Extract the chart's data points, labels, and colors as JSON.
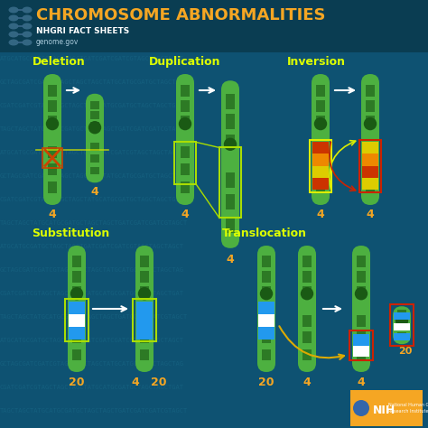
{
  "title": "CHROMOSOME ABNORMALITIES",
  "subtitle": "NHGRI FACT SHEETS",
  "website": "genome.gov",
  "bg_color": "#0e5272",
  "header_color": "#0a3d52",
  "title_color": "#f5a623",
  "subtitle_color": "#ffffff",
  "website_color": "#aaccdd",
  "label_color": "#ddff00",
  "number_color": "#f5a623",
  "chr_green": "#4db040",
  "chr_dark": "#2d7a25",
  "chr_mid": "#3a9030",
  "centromere_color": "#1a5a14",
  "del_cross_color": "#cc4400",
  "inv_red1": "#cc3300",
  "inv_orange": "#ee8800",
  "inv_yellow": "#ddcc00",
  "inv_box_yellow": "#ddee00",
  "inv_box_red": "#cc2200",
  "dup_box_color": "#aadd00",
  "sub_blue": "#2299ee",
  "sub_white": "#ffffff",
  "sub_box_yellow": "#aadd00",
  "trans_box_red": "#cc2200",
  "arrow_color": "#ffffff",
  "trans_arrow": "#ddaa00",
  "dna_text_color": "#1a6a88",
  "nih_bg": "#f5a623"
}
